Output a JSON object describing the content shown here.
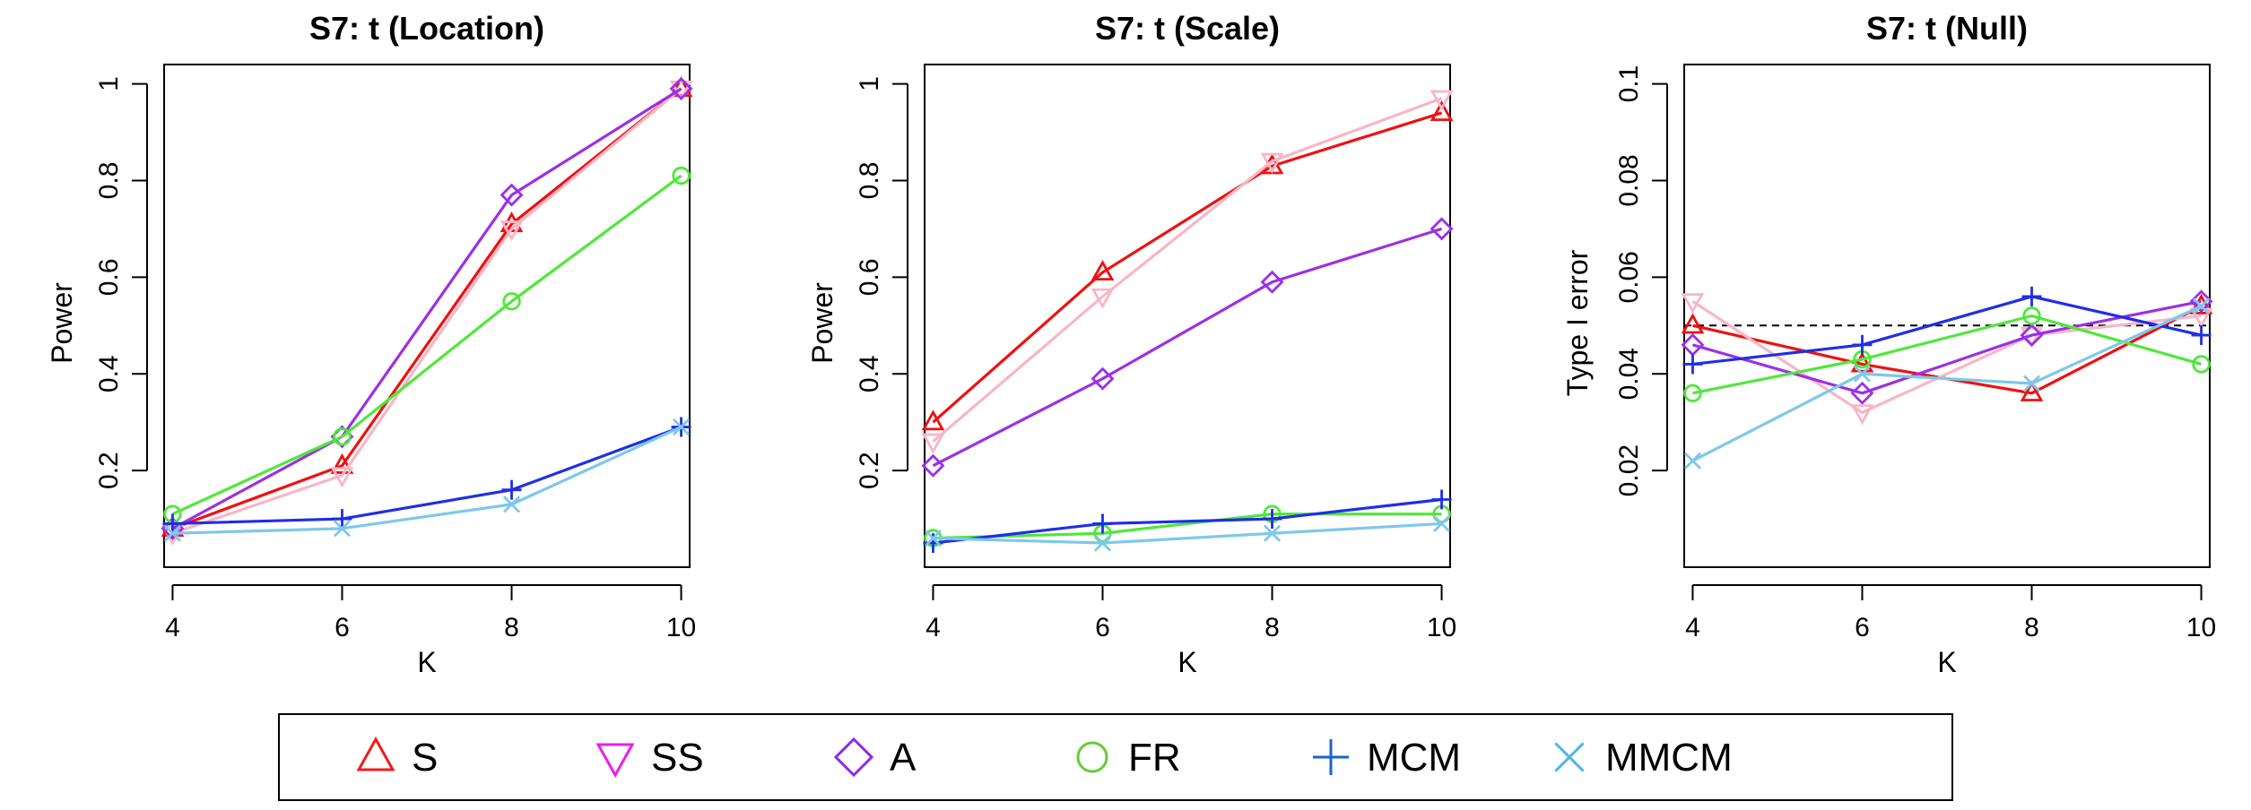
{
  "chart_data": [
    {
      "type": "line",
      "title": "S7: t (Location)",
      "xlabel": "K",
      "ylabel": "Power",
      "x": [
        4,
        6,
        8,
        10
      ],
      "xlim": [
        3.9,
        10.1
      ],
      "ylim": [
        0.0,
        1.04
      ],
      "yticks": [
        0.2,
        0.4,
        0.6,
        0.8,
        1.0
      ],
      "ytick_labels": [
        "0.2",
        "0.4",
        "0.6",
        "0.8",
        "1"
      ],
      "reference_line": null,
      "series": [
        {
          "name": "S",
          "values": [
            0.08,
            0.21,
            0.71,
            0.99
          ]
        },
        {
          "name": "SS",
          "values": [
            0.07,
            0.19,
            0.7,
            0.99
          ]
        },
        {
          "name": "A",
          "values": [
            0.08,
            0.27,
            0.77,
            0.99
          ]
        },
        {
          "name": "FR",
          "values": [
            0.11,
            0.27,
            0.55,
            0.81
          ]
        },
        {
          "name": "MCM",
          "values": [
            0.09,
            0.1,
            0.16,
            0.29
          ]
        },
        {
          "name": "MMCM",
          "values": [
            0.07,
            0.08,
            0.13,
            0.29
          ]
        }
      ]
    },
    {
      "type": "line",
      "title": "S7: t (Scale)",
      "xlabel": "K",
      "ylabel": "Power",
      "x": [
        4,
        6,
        8,
        10
      ],
      "xlim": [
        3.9,
        10.1
      ],
      "ylim": [
        0.0,
        1.04
      ],
      "yticks": [
        0.2,
        0.4,
        0.6,
        0.8,
        1.0
      ],
      "ytick_labels": [
        "0.2",
        "0.4",
        "0.6",
        "0.8",
        "1"
      ],
      "reference_line": null,
      "series": [
        {
          "name": "S",
          "values": [
            0.3,
            0.61,
            0.83,
            0.94
          ]
        },
        {
          "name": "SS",
          "values": [
            0.26,
            0.56,
            0.84,
            0.97
          ]
        },
        {
          "name": "A",
          "values": [
            0.21,
            0.39,
            0.59,
            0.7
          ]
        },
        {
          "name": "FR",
          "values": [
            0.06,
            0.07,
            0.11,
            0.11
          ]
        },
        {
          "name": "MCM",
          "values": [
            0.05,
            0.09,
            0.1,
            0.14
          ]
        },
        {
          "name": "MMCM",
          "values": [
            0.06,
            0.05,
            0.07,
            0.09
          ]
        }
      ]
    },
    {
      "type": "line",
      "title": "S7: t (Null)",
      "xlabel": "K",
      "ylabel": "Type I error",
      "x": [
        4,
        6,
        8,
        10
      ],
      "xlim": [
        3.9,
        10.1
      ],
      "ylim": [
        0.0,
        0.104
      ],
      "yticks": [
        0.02,
        0.04,
        0.06,
        0.08,
        0.1
      ],
      "ytick_labels": [
        "0.02",
        "0.04",
        "0.06",
        "0.08",
        "0.1"
      ],
      "reference_line": 0.05,
      "series": [
        {
          "name": "S",
          "values": [
            0.05,
            0.042,
            0.036,
            0.054
          ]
        },
        {
          "name": "SS",
          "values": [
            0.055,
            0.032,
            0.048,
            0.052
          ]
        },
        {
          "name": "A",
          "values": [
            0.046,
            0.036,
            0.048,
            0.055
          ]
        },
        {
          "name": "FR",
          "values": [
            0.036,
            0.043,
            0.052,
            0.042
          ]
        },
        {
          "name": "MCM",
          "values": [
            0.042,
            0.046,
            0.056,
            0.048
          ]
        },
        {
          "name": "MMCM",
          "values": [
            0.022,
            0.04,
            0.038,
            0.054
          ]
        }
      ]
    }
  ],
  "series_styles": {
    "S": {
      "marker": "triangle-up-icon",
      "color": "#f01010"
    },
    "SS": {
      "marker": "triangle-down-icon",
      "color": "#f7b6c6"
    },
    "A": {
      "marker": "diamond-icon",
      "color": "#9b30e6"
    },
    "FR": {
      "marker": "circle-icon",
      "color": "#4fe83a"
    },
    "MCM": {
      "marker": "plus-icon",
      "color": "#1f2ee8"
    },
    "MMCM": {
      "marker": "cross-icon",
      "color": "#7ec8ea"
    }
  },
  "legend": {
    "position": "bottom",
    "entries": [
      {
        "label": "S",
        "marker": "triangle-up-icon",
        "color": "#ee1c1c"
      },
      {
        "label": "SS",
        "marker": "triangle-down-icon",
        "color": "#ee1cee"
      },
      {
        "label": "A",
        "marker": "diamond-icon",
        "color": "#8a2be2"
      },
      {
        "label": "FR",
        "marker": "circle-icon",
        "color": "#66cc33"
      },
      {
        "label": "MCM",
        "marker": "plus-icon",
        "color": "#1464d2"
      },
      {
        "label": "MMCM",
        "marker": "cross-icon",
        "color": "#52b4e6"
      }
    ]
  }
}
